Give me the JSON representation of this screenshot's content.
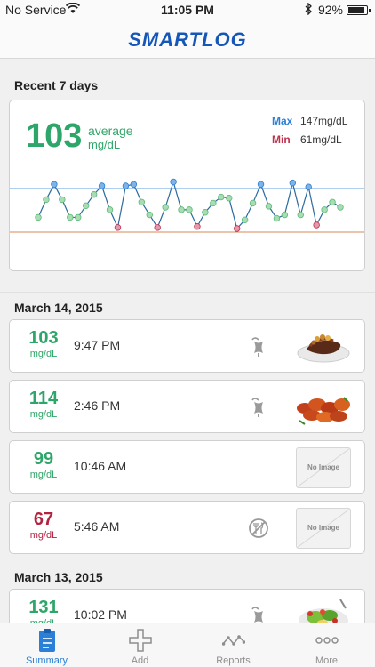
{
  "status_bar": {
    "carrier": "No Service",
    "time": "11:05 PM",
    "battery": "92%",
    "battery_level": 0.92
  },
  "nav": {
    "title": "SMARTLOG"
  },
  "summary": {
    "section_title": "Recent 7 days",
    "average_value": "103",
    "average_label": "average",
    "average_unit": "mg/dL",
    "max_label": "Max",
    "max_value": "147mg/dL",
    "min_label": "Min",
    "min_value": "61mg/dL",
    "colors": {
      "max": "#2a7fd6",
      "min": "#c0314e",
      "normal": "#2fa669"
    }
  },
  "chart_data": {
    "type": "line",
    "max_line": 147,
    "min_line": 61,
    "y_range": [
      40,
      180
    ],
    "points": [
      {
        "v": 90,
        "c": "g"
      },
      {
        "v": 125,
        "c": "g"
      },
      {
        "v": 155,
        "c": "b"
      },
      {
        "v": 125,
        "c": "g"
      },
      {
        "v": 90,
        "c": "g"
      },
      {
        "v": 90,
        "c": "g"
      },
      {
        "v": 113,
        "c": "g"
      },
      {
        "v": 135,
        "c": "g"
      },
      {
        "v": 152,
        "c": "b"
      },
      {
        "v": 105,
        "c": "g"
      },
      {
        "v": 70,
        "c": "r"
      },
      {
        "v": 152,
        "c": "b"
      },
      {
        "v": 155,
        "c": "b"
      },
      {
        "v": 120,
        "c": "g"
      },
      {
        "v": 95,
        "c": "g"
      },
      {
        "v": 70,
        "c": "r"
      },
      {
        "v": 110,
        "c": "g"
      },
      {
        "v": 160,
        "c": "b"
      },
      {
        "v": 105,
        "c": "g"
      },
      {
        "v": 105,
        "c": "g"
      },
      {
        "v": 72,
        "c": "r"
      },
      {
        "v": 100,
        "c": "g"
      },
      {
        "v": 118,
        "c": "g"
      },
      {
        "v": 130,
        "c": "g"
      },
      {
        "v": 128,
        "c": "g"
      },
      {
        "v": 68,
        "c": "r"
      },
      {
        "v": 85,
        "c": "g"
      },
      {
        "v": 118,
        "c": "g"
      },
      {
        "v": 155,
        "c": "b"
      },
      {
        "v": 112,
        "c": "g"
      },
      {
        "v": 88,
        "c": "g"
      },
      {
        "v": 95,
        "c": "g"
      },
      {
        "v": 158,
        "c": "b"
      },
      {
        "v": 95,
        "c": "g"
      },
      {
        "v": 150,
        "c": "b"
      },
      {
        "v": 75,
        "c": "r"
      },
      {
        "v": 105,
        "c": "g"
      },
      {
        "v": 120,
        "c": "g"
      },
      {
        "v": 110,
        "c": "g"
      }
    ]
  },
  "days": [
    {
      "date": "March 14, 2015"
    },
    {
      "date": "March 13, 2015"
    }
  ],
  "entries": [
    {
      "value": "103",
      "unit": "mg/dL",
      "time": "9:47 PM",
      "level": "normal",
      "meal": "after",
      "image": "steak-photo"
    },
    {
      "value": "114",
      "unit": "mg/dL",
      "time": "2:46 PM",
      "level": "normal",
      "meal": "after",
      "image": "chicken-photo"
    },
    {
      "value": "99",
      "unit": "mg/dL",
      "time": "10:46 AM",
      "level": "normal",
      "meal": "none",
      "image_text": "No Image"
    },
    {
      "value": "67",
      "unit": "mg/dL",
      "time": "5:46 AM",
      "level": "low",
      "meal": "fasting",
      "image_text": "No Image"
    },
    {
      "value": "131",
      "unit": "mg/dL",
      "time": "10:02 PM",
      "level": "normal",
      "meal": "after",
      "image": "salad-photo"
    }
  ],
  "tabs": [
    {
      "label": "Summary",
      "icon": "clipboard-icon",
      "active": true
    },
    {
      "label": "Add",
      "icon": "plus-icon",
      "active": false
    },
    {
      "label": "Reports",
      "icon": "line-chart-icon",
      "active": false
    },
    {
      "label": "More",
      "icon": "ellipsis-icon",
      "active": false
    }
  ]
}
